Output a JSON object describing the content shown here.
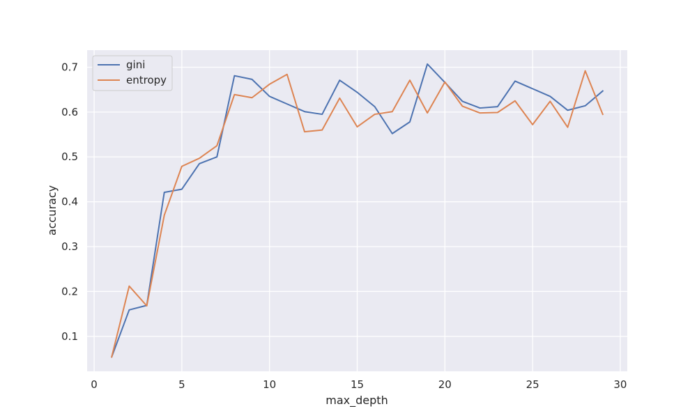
{
  "chart_data": {
    "type": "line",
    "title": "",
    "xlabel": "max_depth",
    "ylabel": "accuracy",
    "xlim": [
      -0.4,
      30.4
    ],
    "ylim": [
      0.022,
      0.738
    ],
    "xticks": [
      0,
      5,
      10,
      15,
      20,
      25,
      30
    ],
    "xtick_labels": [
      "0",
      "5",
      "10",
      "15",
      "20",
      "25",
      "30"
    ],
    "yticks": [
      0.1,
      0.2,
      0.3,
      0.4,
      0.5,
      0.6,
      0.7
    ],
    "ytick_labels": [
      "0.1",
      "0.2",
      "0.3",
      "0.4",
      "0.5",
      "0.6",
      "0.7"
    ],
    "grid": true,
    "legend_position": "top-left",
    "background": "#eaeaf2",
    "x": [
      1,
      2,
      3,
      4,
      5,
      6,
      7,
      8,
      9,
      10,
      11,
      12,
      13,
      14,
      15,
      16,
      17,
      18,
      19,
      20,
      21,
      22,
      23,
      24,
      25,
      26,
      27,
      28,
      29
    ],
    "series": [
      {
        "name": "gini",
        "color": "#4c72b0",
        "values": [
          0.054,
          0.159,
          0.169,
          0.421,
          0.428,
          0.485,
          0.5,
          0.681,
          0.673,
          0.635,
          0.618,
          0.601,
          0.595,
          0.671,
          0.644,
          0.612,
          0.552,
          0.578,
          0.707,
          0.666,
          0.624,
          0.609,
          0.612,
          0.669,
          0.652,
          0.635,
          0.604,
          0.614,
          0.647
        ]
      },
      {
        "name": "entropy",
        "color": "#dd8452",
        "values": [
          0.054,
          0.212,
          0.168,
          0.37,
          0.479,
          0.497,
          0.525,
          0.639,
          0.632,
          0.662,
          0.684,
          0.556,
          0.56,
          0.631,
          0.567,
          0.595,
          0.601,
          0.671,
          0.598,
          0.667,
          0.613,
          0.598,
          0.599,
          0.625,
          0.572,
          0.624,
          0.566,
          0.692,
          0.595
        ]
      }
    ]
  }
}
